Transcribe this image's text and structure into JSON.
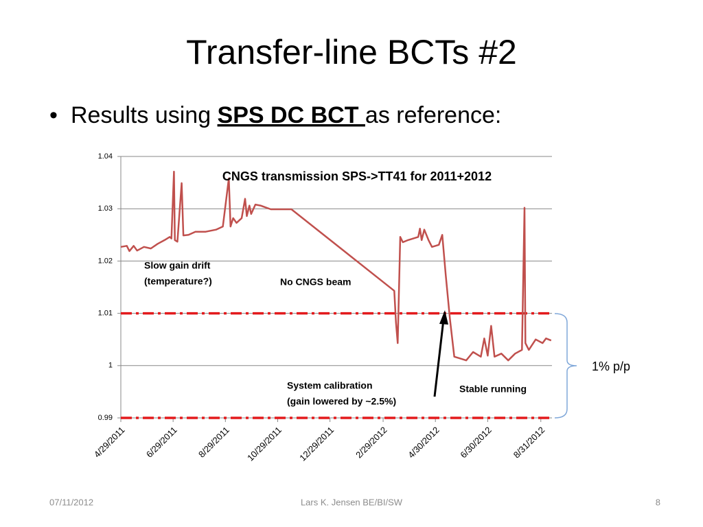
{
  "slide": {
    "title": "Transfer-line BCTs #2",
    "bullet": {
      "before": "Results using ",
      "emphasis": "SPS DC BCT ",
      "after": "as reference:"
    },
    "footer": {
      "date": "07/11/2012",
      "author": "Lars K. Jensen BE/BI/SW",
      "page": "8"
    }
  },
  "chart_data": {
    "type": "line",
    "title": "CNGS transmission SPS->TT41 for 2011+2012",
    "x": [
      "4/29/2011",
      "5/6/2011",
      "5/9/2011",
      "5/14/2011",
      "5/18/2011",
      "5/26/2011",
      "6/3/2011",
      "6/11/2011",
      "6/19/2011",
      "6/25/2011",
      "6/27/2011",
      "6/30/2011",
      "7/1/2011",
      "7/4/2011",
      "7/9/2011",
      "7/11/2011",
      "7/17/2011",
      "7/25/2011",
      "8/6/2011",
      "8/18/2011",
      "8/26/2011",
      "9/2/2011",
      "9/4/2011",
      "9/7/2011",
      "9/11/2011",
      "9/17/2011",
      "9/21/2011",
      "9/23/2011",
      "9/26/2011",
      "9/28/2011",
      "10/3/2011",
      "10/9/2011",
      "10/21/2011",
      "11/14/2011",
      "3/13/2012",
      "3/15/2012",
      "3/17/2012",
      "3/20/2012",
      "3/23/2012",
      "3/29/2012",
      "4/10/2012",
      "4/12/2012",
      "4/14/2012",
      "4/17/2012",
      "4/22/2012",
      "4/26/2012",
      "5/4/2012",
      "5/8/2012",
      "5/12/2012",
      "5/17/2012",
      "5/22/2012",
      "5/28/2012",
      "6/5/2012",
      "6/13/2012",
      "6/22/2012",
      "6/26/2012",
      "6/30/2012",
      "7/4/2012",
      "7/8/2012",
      "7/16/2012",
      "7/24/2012",
      "8/1/2012",
      "8/9/2012",
      "8/12/2012",
      "8/13/2012",
      "8/17/2012",
      "8/25/2012",
      "9/2/2012",
      "9/6/2012",
      "9/12/2012"
    ],
    "series": [
      {
        "name": "Transmission",
        "color": "#c0504d",
        "values": [
          1.0227,
          1.0229,
          1.0219,
          1.0229,
          1.022,
          1.0227,
          1.0224,
          1.0233,
          1.024,
          1.0246,
          1.0243,
          1.0371,
          1.024,
          1.0237,
          1.0349,
          1.0249,
          1.025,
          1.0256,
          1.0256,
          1.026,
          1.0266,
          1.0358,
          1.0266,
          1.0282,
          1.0273,
          1.0282,
          1.0319,
          1.0286,
          1.0306,
          1.029,
          1.0308,
          1.0306,
          1.0299,
          1.0299,
          1.0143,
          1.0082,
          1.0043,
          1.0246,
          1.0236,
          1.024,
          1.0246,
          1.0262,
          1.024,
          1.026,
          1.024,
          1.0227,
          1.0231,
          1.025,
          1.0174,
          1.0089,
          1.0017,
          1.0014,
          1.001,
          1.0026,
          1.0017,
          1.0052,
          1.0019,
          1.0076,
          1.0017,
          1.0023,
          1.001,
          1.0023,
          1.003,
          1.0302,
          1.0043,
          1.003,
          1.005,
          1.0043,
          1.0052,
          1.0048
        ]
      }
    ],
    "xlim": [
      "4/29/2011",
      "9/13/2012"
    ],
    "xticks": [
      "4/29/2011",
      "6/29/2011",
      "8/29/2011",
      "10/29/2011",
      "12/29/2011",
      "2/29/2012",
      "4/30/2012",
      "6/30/2012",
      "8/31/2012"
    ],
    "ylim": [
      0.99,
      1.04
    ],
    "yticks": [
      0.99,
      1,
      1.01,
      1.02,
      1.03,
      1.04
    ],
    "grid": true,
    "reference_lines": [
      {
        "value": 1.01,
        "color": "#e31a1c"
      },
      {
        "value": 0.99,
        "color": "#e31a1c"
      }
    ],
    "annotations": [
      {
        "lines": [
          "Slow gain drift",
          "(temperature?)"
        ]
      },
      {
        "lines": [
          "No CNGS beam"
        ]
      },
      {
        "lines": [
          "System calibration",
          "(gain lowered by ~2.5%)"
        ]
      },
      {
        "lines": [
          "Stable running"
        ]
      }
    ],
    "band_label": "1% p/p"
  }
}
